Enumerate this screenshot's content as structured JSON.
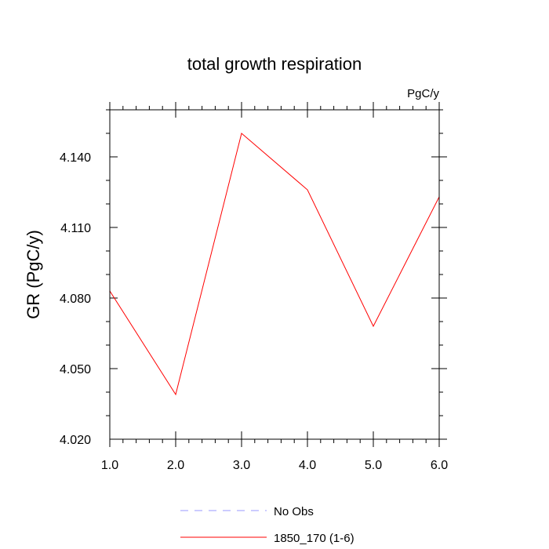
{
  "chart_data": {
    "type": "line",
    "title": "total growth respiration",
    "units_label": "PgC/y",
    "xlabel": "",
    "ylabel": "GR  (PgC/y)",
    "xlim": [
      1.0,
      6.0
    ],
    "ylim": [
      4.02,
      4.16
    ],
    "x_ticks": [
      1.0,
      2.0,
      3.0,
      4.0,
      5.0,
      6.0
    ],
    "x_tick_labels": [
      "1.0",
      "2.0",
      "3.0",
      "4.0",
      "5.0",
      "6.0"
    ],
    "y_ticks": [
      4.02,
      4.05,
      4.08,
      4.11,
      4.14
    ],
    "y_tick_labels": [
      "4.020",
      "4.050",
      "4.080",
      "4.110",
      "4.140"
    ],
    "series": [
      {
        "name": "1850_170 (1-6)",
        "color": "#ff0000",
        "style": "solid",
        "x": [
          1.0,
          2.0,
          3.0,
          4.0,
          5.0,
          6.0
        ],
        "values": [
          4.083,
          4.039,
          4.15,
          4.126,
          4.068,
          4.123
        ]
      },
      {
        "name": "No Obs",
        "color": "#9999ff",
        "style": "dashed",
        "x": [],
        "values": []
      }
    ],
    "legend": [
      "No Obs",
      "1850_170 (1-6)"
    ]
  }
}
